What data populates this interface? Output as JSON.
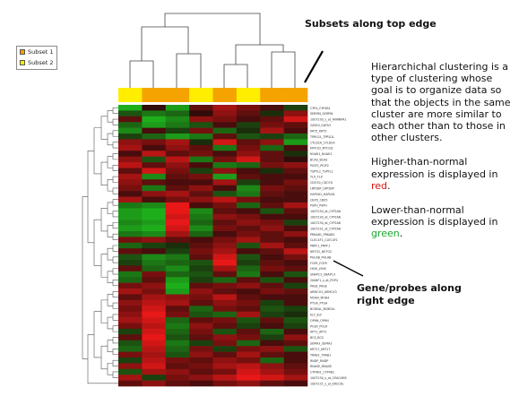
{
  "legend": {
    "items": [
      {
        "label": "Subset 1",
        "color": "#f5a300"
      },
      {
        "label": "Subset 2",
        "color": "#ffee00"
      }
    ]
  },
  "annotations": {
    "top_title": "Subsets along top edge",
    "right_title": "Gene/probes along right edge"
  },
  "explanation": {
    "paragraph1": "Hierarchichal clustering is a type of clustering whose goal is to organize data so that the objects in the same cluster are more similar to each other than to those in other clusters.",
    "higher_prefix": "Higher-than-normal expression is displayed in ",
    "higher_color_word": "red",
    "higher_suffix": ".",
    "lower_prefix": "Lower-than-normal expression is displayed in ",
    "lower_color_word": "green",
    "lower_suffix": "."
  },
  "colors": {
    "subset1": "#f5a300",
    "subset2": "#ffee00",
    "high": "#ff1a1a",
    "low": "#1ec01e",
    "neutral": "#1a0a08"
  },
  "heatmap": {
    "column_subsets": [
      2,
      1,
      1,
      2,
      1,
      2,
      1,
      1
    ],
    "gene_labels": [
      "CYP4_CYP4B1",
      "SERPIN_SERPIN",
      "1007230_s_at_HNRNPA1",
      "GATA3_GATA3",
      "KRT5_KRT5",
      "TPRG1L_TPRG1L",
      "CYLD2A_CYLD2A",
      "MYO1D_MYO1D",
      "NUAK1_NUAK1",
      "BCAS_BCAS",
      "PIGP2_PIGP2",
      "TSPYL2_TSPYL2",
      "TLX_TLX",
      "CDO70_CDO70",
      "LRP2BP_LRP2BP",
      "HAPLN1_HAPLN1",
      "CBX5_CBX5",
      "PSPH_PSPH",
      "1007230_at_CYP2A6",
      "1007230_at_CYP2A6",
      "1007230_at_CYP2A6",
      "1007231_at_CYP2A6",
      "PRKAB1_PRKAB1",
      "CLEC4F1_CLEC4F1",
      "PRPF1_PRPF1",
      "NETO2_NETO2",
      "PHLAB_PHLAB",
      "FCER_FCER",
      "LYNX_LYNX",
      "SNAPC3_SNAPC3",
      "2006F1_s_at_PGP4",
      "PAGE_PAGE",
      "ARMCX3_ARMCX3",
      "MOB4_MOB4",
      "PTGA_PTGA",
      "BCBEAL_BCBEAL",
      "ELF_ELF",
      "OPHN_OPHN",
      "POLR_POLR",
      "APT1_APT1",
      "BCS_BCS",
      "SEMA3_SEMA3",
      "KRT17_KRT17",
      "TRAB1_TRAB1",
      "RNDP_RNDP",
      "RNASE_RNASE",
      "CYP4B1_CYP4B1",
      "1007230_s_at_CEACAM5",
      "1007231_s_at_ERCC6L"
    ],
    "values": [
      [
        -0.9,
        0.1,
        -0.8,
        0.3,
        0.6,
        0.4,
        0.2,
        -0.3
      ],
      [
        -0.4,
        -0.6,
        -0.5,
        0.1,
        0.5,
        0.3,
        -0.2,
        0.5
      ],
      [
        0.3,
        -0.9,
        -0.7,
        0.5,
        0.4,
        0.2,
        0.3,
        0.8
      ],
      [
        -0.5,
        -0.8,
        -0.6,
        -0.4,
        0.2,
        -0.3,
        0.4,
        0.3
      ],
      [
        -0.7,
        0.2,
        -0.3,
        0.4,
        -0.5,
        -0.2,
        0.6,
        0.2
      ],
      [
        -0.3,
        -0.5,
        -0.8,
        -0.6,
        0.3,
        -0.4,
        -0.3,
        -0.5
      ],
      [
        0.5,
        0.4,
        0.6,
        -0.2,
        0.8,
        0.3,
        0.5,
        -0.8
      ],
      [
        0.6,
        0.2,
        0.5,
        0.3,
        -0.6,
        0.4,
        -0.5,
        0.2
      ],
      [
        0.2,
        0.7,
        0.3,
        0.4,
        0.2,
        0.5,
        0.3,
        -0.2
      ],
      [
        0.5,
        -0.4,
        0.7,
        -0.6,
        0.4,
        0.8,
        0.3,
        0.1
      ],
      [
        0.7,
        0.3,
        0.5,
        0.2,
        -0.6,
        -0.5,
        0.4,
        0.5
      ],
      [
        0.3,
        0.8,
        0.4,
        -0.3,
        0.5,
        0.2,
        -0.2,
        0.3
      ],
      [
        0.6,
        -0.7,
        0.3,
        0.4,
        -0.8,
        0.3,
        0.2,
        0.2
      ],
      [
        0.5,
        0.3,
        0.2,
        0.2,
        0.6,
        -0.3,
        0.2,
        0.4
      ],
      [
        0.4,
        -0.6,
        0.3,
        0.5,
        0.2,
        -0.7,
        0.4,
        0.3
      ],
      [
        0.2,
        0.5,
        0.6,
        0.3,
        -0.4,
        -0.6,
        0.3,
        0.2
      ],
      [
        0.6,
        0.2,
        0.4,
        0.5,
        0.7,
        0.4,
        0.2,
        0.2
      ],
      [
        -0.6,
        -0.7,
        0.9,
        0.2,
        0.4,
        -0.5,
        0.3,
        0.6
      ],
      [
        -0.8,
        -0.9,
        0.9,
        -0.7,
        0.3,
        0.2,
        -0.4,
        0.3
      ],
      [
        -0.8,
        -0.9,
        0.8,
        -0.6,
        0.5,
        0.4,
        0.2,
        0.2
      ],
      [
        -0.7,
        -0.8,
        0.9,
        -0.5,
        0.3,
        0.5,
        0.4,
        -0.3
      ],
      [
        -0.8,
        -0.9,
        0.8,
        -0.7,
        0.4,
        0.3,
        0.5,
        0.2
      ],
      [
        -0.6,
        -0.7,
        0.6,
        -0.5,
        0.2,
        0.4,
        0.3,
        0.5
      ],
      [
        0.4,
        0.5,
        0.3,
        0.2,
        0.4,
        0.6,
        0.3,
        0.2
      ],
      [
        -0.5,
        -0.3,
        -0.2,
        0.3,
        0.5,
        -0.4,
        0.6,
        0.3
      ],
      [
        0.3,
        0.2,
        -0.3,
        0.4,
        0.6,
        0.2,
        0.3,
        0.7
      ],
      [
        -0.4,
        -0.7,
        -0.6,
        0.3,
        0.8,
        -0.4,
        0.2,
        0.4
      ],
      [
        -0.3,
        -0.6,
        -0.5,
        -0.4,
        0.9,
        -0.3,
        0.3,
        0.2
      ],
      [
        0.3,
        -0.5,
        -0.7,
        -0.3,
        0.6,
        -0.5,
        0.4,
        0.3
      ],
      [
        -0.6,
        0.4,
        -0.5,
        -0.4,
        0.3,
        -0.6,
        0.2,
        -0.4
      ],
      [
        -0.5,
        0.3,
        -0.8,
        -0.3,
        -0.5,
        0.3,
        -0.4,
        0.2
      ],
      [
        0.4,
        0.5,
        -0.9,
        0.3,
        0.4,
        0.5,
        0.3,
        -0.3
      ],
      [
        0.6,
        0.4,
        -0.8,
        0.5,
        0.3,
        0.2,
        0.4,
        0.3
      ],
      [
        0.3,
        0.6,
        0.5,
        0.4,
        0.7,
        0.3,
        0.2,
        0.2
      ],
      [
        0.5,
        0.7,
        0.6,
        0.3,
        0.5,
        0.4,
        -0.3,
        0.2
      ],
      [
        0.4,
        0.8,
        0.3,
        -0.5,
        0.4,
        0.3,
        -0.4,
        -0.3
      ],
      [
        0.5,
        0.9,
        0.4,
        -0.4,
        -0.5,
        0.6,
        -0.3,
        -0.2
      ],
      [
        0.6,
        0.8,
        -0.5,
        0.3,
        0.4,
        -0.4,
        0.3,
        -0.4
      ],
      [
        0.4,
        0.7,
        -0.6,
        0.5,
        0.3,
        -0.3,
        0.2,
        -0.3
      ],
      [
        -0.3,
        0.8,
        -0.5,
        0.4,
        -0.4,
        0.3,
        -0.5,
        0.2
      ],
      [
        0.3,
        0.9,
        -0.4,
        0.3,
        0.5,
        0.4,
        -0.3,
        0.5
      ],
      [
        -0.4,
        0.8,
        -0.6,
        -0.3,
        0.4,
        -0.5,
        0.2,
        0.3
      ],
      [
        -0.5,
        0.7,
        -0.5,
        0.4,
        -0.3,
        0.4,
        0.5,
        -0.4
      ],
      [
        0.4,
        0.6,
        -0.4,
        0.5,
        0.3,
        0.6,
        0.3,
        0.2
      ],
      [
        -0.3,
        0.7,
        0.4,
        0.3,
        0.5,
        0.4,
        -0.5,
        0.2
      ],
      [
        0.5,
        0.8,
        0.3,
        0.4,
        0.6,
        0.7,
        0.5,
        0.3
      ],
      [
        -0.4,
        0.6,
        0.5,
        0.3,
        0.4,
        0.8,
        0.6,
        0.4
      ],
      [
        0.6,
        -0.3,
        0.4,
        0.5,
        0.7,
        0.9,
        0.8,
        0.6
      ],
      [
        0.3,
        0.5,
        0.3,
        0.2,
        0.4,
        0.5,
        0.3,
        0.2
      ]
    ]
  }
}
